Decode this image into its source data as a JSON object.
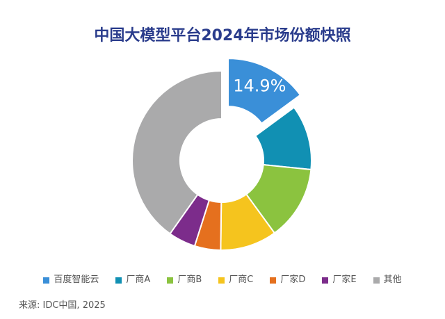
{
  "chart_data": {
    "type": "pie",
    "donut": true,
    "title": "中国大模型平台2024年市场份额快照",
    "categories": [
      "百度智能云",
      "厂商A",
      "厂商B",
      "厂商C",
      "厂家D",
      "厂家E",
      "其他"
    ],
    "values": [
      14.9,
      11.7,
      13.4,
      10.2,
      4.7,
      4.9,
      40.2
    ],
    "data_labels": [
      "14.9%",
      "",
      "",
      "",
      "",
      "",
      ""
    ],
    "colors": [
      "#3a8fd8",
      "#1190b3",
      "#8bc33f",
      "#f5c41e",
      "#e5701e",
      "#7c2c8b",
      "#aaaaab"
    ],
    "exploded_category": "百度智能云",
    "legend_position": "bottom"
  },
  "source": "来源: IDC中国, 2025"
}
